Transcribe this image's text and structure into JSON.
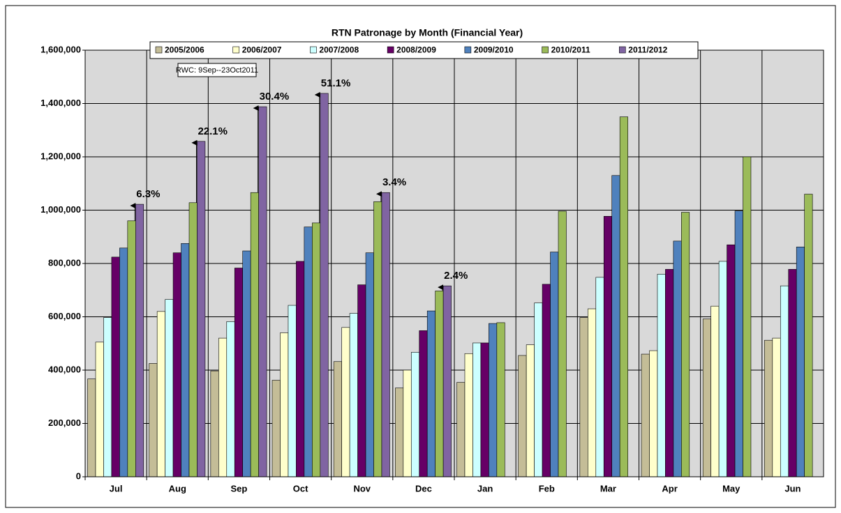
{
  "chart_data": {
    "type": "bar",
    "title": "RTN Patronage by Month (Financial Year)",
    "note": "RWC: 9Sep--23Oct2011",
    "categories": [
      "Jul",
      "Aug",
      "Sep",
      "Oct",
      "Nov",
      "Dec",
      "Jan",
      "Feb",
      "Mar",
      "Apr",
      "May",
      "Jun"
    ],
    "series": [
      {
        "name": "2005/2006",
        "color": "#c4bd97",
        "values": [
          367000,
          425000,
          397000,
          362000,
          432000,
          333000,
          354000,
          455000,
          597000,
          460000,
          592000,
          512000
        ]
      },
      {
        "name": "2006/2007",
        "color": "#ffffcc",
        "values": [
          505000,
          620000,
          520000,
          540000,
          560000,
          400000,
          462000,
          495000,
          630000,
          473000,
          640000,
          520000
        ]
      },
      {
        "name": "2007/2008",
        "color": "#ccffff",
        "values": [
          597000,
          665000,
          582000,
          643000,
          613000,
          467000,
          502000,
          652000,
          748000,
          760000,
          808000,
          716000
        ]
      },
      {
        "name": "2008/2009",
        "color": "#660066",
        "values": [
          824000,
          840000,
          783000,
          808000,
          720000,
          548000,
          502000,
          722000,
          977000,
          778000,
          870000,
          778000
        ]
      },
      {
        "name": "2009/2010",
        "color": "#4f81bd",
        "values": [
          858000,
          875000,
          847000,
          937000,
          840000,
          622000,
          575000,
          843000,
          1130000,
          884000,
          997000,
          862000
        ]
      },
      {
        "name": "2010/2011",
        "color": "#9bbb59",
        "values": [
          960000,
          1028000,
          1066000,
          952000,
          1032000,
          697000,
          578000,
          996000,
          1350000,
          992000,
          1200000,
          1060000
        ]
      },
      {
        "name": "2011/2012",
        "color": "#8064a2",
        "values": [
          1022000,
          1258000,
          1388000,
          1438000,
          1066000,
          716000,
          null,
          null,
          null,
          null,
          null,
          null
        ]
      }
    ],
    "annotations": [
      {
        "category": "Jul",
        "text": "6.3%"
      },
      {
        "category": "Aug",
        "text": "22.1%"
      },
      {
        "category": "Sep",
        "text": "30.4%"
      },
      {
        "category": "Oct",
        "text": "51.1%"
      },
      {
        "category": "Nov",
        "text": "3.4%"
      },
      {
        "category": "Dec",
        "text": "2.4%"
      }
    ],
    "ylim": [
      0,
      1600000
    ],
    "yticks": [
      0,
      {
        "value": 200000,
        "label": "200,000"
      },
      {
        "value": 400000,
        "label": "400,000"
      },
      {
        "value": 600000,
        "label": "600,000"
      },
      {
        "value": 800000,
        "label": "800,000"
      },
      {
        "value": 1000000,
        "label": "1,000,000"
      },
      {
        "value": 1200000,
        "label": "1,200,000"
      },
      {
        "value": 1400000,
        "label": "1,400,000"
      },
      {
        "value": 1600000,
        "label": "1,600,000"
      }
    ],
    "grid": true,
    "legend": "top"
  }
}
